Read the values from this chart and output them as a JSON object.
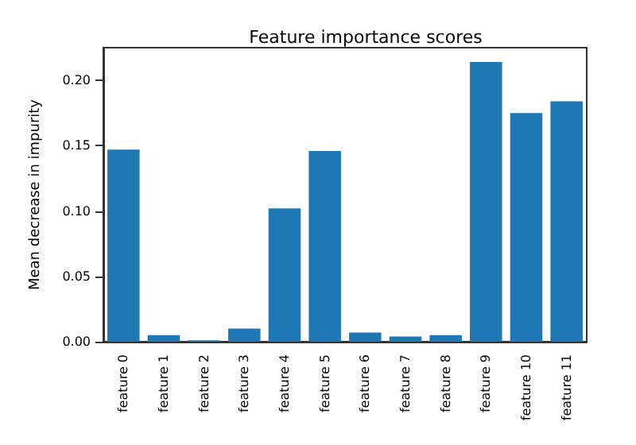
{
  "chart_data": {
    "type": "bar",
    "title": "Feature importance scores",
    "ylabel": "Mean decrease in impurity",
    "categories": [
      "feature 0",
      "feature 1",
      "feature 2",
      "feature 3",
      "feature 4",
      "feature 5",
      "feature 6",
      "feature 7",
      "feature 8",
      "feature 9",
      "feature 10",
      "feature 11"
    ],
    "values": [
      0.147,
      0.005,
      0.001,
      0.01,
      0.102,
      0.146,
      0.007,
      0.004,
      0.005,
      0.214,
      0.175,
      0.184
    ],
    "color": "#1f77b4",
    "ylim": [
      0,
      0.225
    ],
    "yticks": [
      {
        "value": 0,
        "label": "0.00"
      },
      {
        "value": 0.05,
        "label": "0.05"
      },
      {
        "value": 0.1,
        "label": "0.10"
      },
      {
        "value": 0.15,
        "label": "0.15"
      },
      {
        "value": 0.2,
        "label": "0.20"
      }
    ],
    "grid": false
  }
}
